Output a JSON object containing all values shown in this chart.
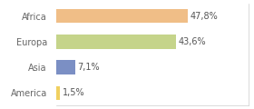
{
  "categories": [
    "Africa",
    "Europa",
    "Asia",
    "America"
  ],
  "values": [
    47.8,
    43.6,
    7.1,
    1.5
  ],
  "labels": [
    "47,8%",
    "43,6%",
    "7,1%",
    "1,5%"
  ],
  "bar_colors": [
    "#f0be87",
    "#c5d48a",
    "#7b8fc4",
    "#f0d060"
  ],
  "background_color": "#ffffff",
  "xlim": [
    0,
    70
  ],
  "bar_height": 0.55,
  "label_fontsize": 7,
  "tick_fontsize": 7,
  "tick_color": "#666666",
  "label_color": "#555555"
}
